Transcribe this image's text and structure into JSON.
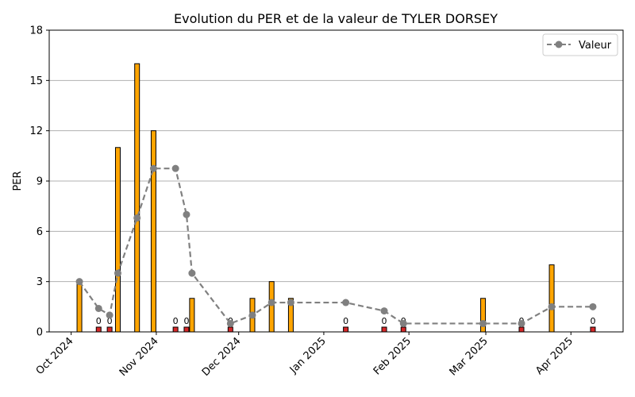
{
  "chart_data": {
    "type": "bar",
    "title": "Evolution du PER et de la valeur de TYLER DORSEY",
    "xlabel": "",
    "ylabel": "PER",
    "ylim": [
      0,
      18
    ],
    "y_ticks": [
      0,
      3,
      6,
      9,
      12,
      15,
      18
    ],
    "grid": "horizontal",
    "legend_position": "top-right",
    "x_ticks": [
      {
        "date": "2024-10-01",
        "label": "Oct 2024"
      },
      {
        "date": "2024-11-01",
        "label": "Nov 2024"
      },
      {
        "date": "2024-12-01",
        "label": "Dec 2024"
      },
      {
        "date": "2025-01-01",
        "label": "Jan 2025"
      },
      {
        "date": "2025-02-01",
        "label": "Feb 2025"
      },
      {
        "date": "2025-03-01",
        "label": "Mar 2025"
      },
      {
        "date": "2025-04-01",
        "label": "Apr 2025"
      }
    ],
    "x_range": [
      "2024-09-23",
      "2025-04-20"
    ],
    "bar_colors": {
      "positive": "#ffa500",
      "zero": "#d62728"
    },
    "zero_label": "0",
    "per_bars": [
      {
        "date": "2024-10-04",
        "value": 3
      },
      {
        "date": "2024-10-11",
        "value": 0
      },
      {
        "date": "2024-10-15",
        "value": 0
      },
      {
        "date": "2024-10-18",
        "value": 11
      },
      {
        "date": "2024-10-25",
        "value": 16
      },
      {
        "date": "2024-10-31",
        "value": 12
      },
      {
        "date": "2024-11-08",
        "value": 0
      },
      {
        "date": "2024-11-12",
        "value": 0
      },
      {
        "date": "2024-11-14",
        "value": 2
      },
      {
        "date": "2024-11-28",
        "value": 0
      },
      {
        "date": "2024-12-06",
        "value": 2
      },
      {
        "date": "2024-12-13",
        "value": 3
      },
      {
        "date": "2024-12-20",
        "value": 2
      },
      {
        "date": "2025-01-09",
        "value": 0
      },
      {
        "date": "2025-01-23",
        "value": 0
      },
      {
        "date": "2025-01-30",
        "value": 0
      },
      {
        "date": "2025-02-28",
        "value": 2
      },
      {
        "date": "2025-03-14",
        "value": 0
      },
      {
        "date": "2025-03-25",
        "value": 4
      },
      {
        "date": "2025-04-09",
        "value": 0
      }
    ],
    "series": [
      {
        "name": "Valeur",
        "color": "#808080",
        "style": "dashed-line-with-circles",
        "points": [
          {
            "date": "2024-10-04",
            "value": 3.0
          },
          {
            "date": "2024-10-11",
            "value": 1.4
          },
          {
            "date": "2024-10-15",
            "value": 1.0
          },
          {
            "date": "2024-10-18",
            "value": 3.5
          },
          {
            "date": "2024-10-25",
            "value": 6.8
          },
          {
            "date": "2024-10-31",
            "value": 9.75
          },
          {
            "date": "2024-11-08",
            "value": 9.75
          },
          {
            "date": "2024-11-12",
            "value": 7.0
          },
          {
            "date": "2024-11-14",
            "value": 3.5
          },
          {
            "date": "2024-11-28",
            "value": 0.5
          },
          {
            "date": "2024-12-06",
            "value": 1.0
          },
          {
            "date": "2024-12-13",
            "value": 1.75
          },
          {
            "date": "2024-12-20",
            "value": 1.75
          },
          {
            "date": "2025-01-09",
            "value": 1.75
          },
          {
            "date": "2025-01-23",
            "value": 1.25
          },
          {
            "date": "2025-01-30",
            "value": 0.5
          },
          {
            "date": "2025-02-28",
            "value": 0.5
          },
          {
            "date": "2025-03-14",
            "value": 0.5
          },
          {
            "date": "2025-03-25",
            "value": 1.5
          },
          {
            "date": "2025-04-09",
            "value": 1.5
          }
        ]
      }
    ]
  }
}
